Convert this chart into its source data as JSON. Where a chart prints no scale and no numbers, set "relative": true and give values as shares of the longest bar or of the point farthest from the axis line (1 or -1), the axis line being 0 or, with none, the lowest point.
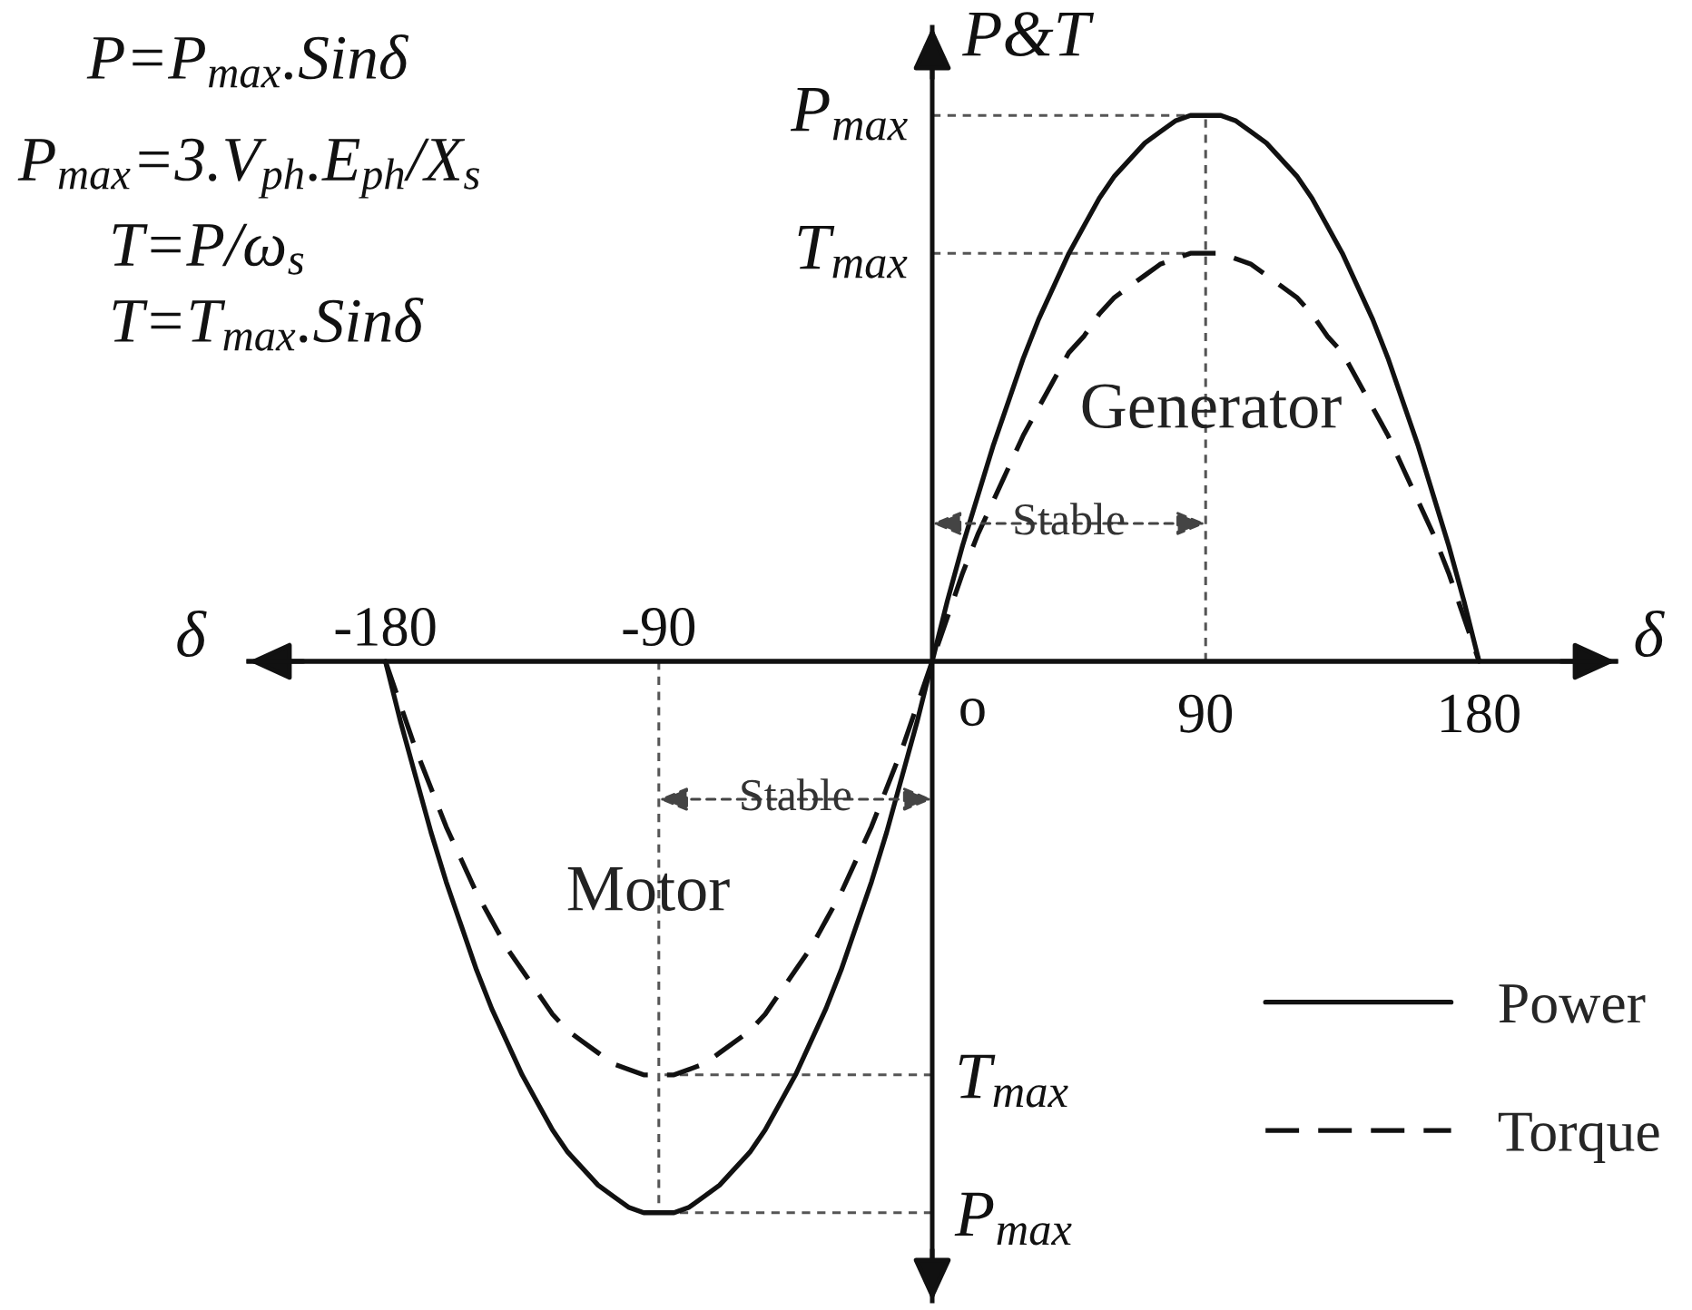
{
  "chart_data": {
    "type": "line",
    "relative": true,
    "xlabel": "δ",
    "ylabel": "P&T",
    "xlim": [
      -225,
      225
    ],
    "xticks": [
      90,
      180
    ],
    "x2lim": [
      -225,
      225
    ],
    "x2ticks": [
      -180,
      -90
    ],
    "x": [
      -180,
      -175,
      -170,
      -165,
      -160,
      -155,
      -150,
      -145,
      -140,
      -135,
      -130,
      -125,
      -120,
      -115,
      -110,
      -105,
      -100,
      -95,
      -90,
      -85,
      -80,
      -75,
      -70,
      -65,
      -60,
      -55,
      -50,
      -45,
      -40,
      -35,
      -30,
      -25,
      -20,
      -15,
      -10,
      -5,
      0,
      5,
      10,
      15,
      20,
      25,
      30,
      35,
      40,
      45,
      50,
      55,
      60,
      65,
      70,
      75,
      80,
      85,
      90,
      95,
      100,
      105,
      110,
      115,
      120,
      125,
      130,
      135,
      140,
      145,
      150,
      155,
      160,
      165,
      170,
      175,
      180
    ],
    "series": [
      {
        "name": "Power",
        "color": "#111111",
        "line_style": "solid",
        "values": [
          0,
          -0.11,
          -0.21,
          -0.31,
          -0.4,
          -0.48,
          -0.56,
          -0.63,
          -0.69,
          -0.75,
          -0.8,
          -0.85,
          -0.89,
          -0.92,
          -0.95,
          -0.97,
          -0.99,
          -1.0,
          -1.0,
          -1.0,
          -0.99,
          -0.97,
          -0.95,
          -0.92,
          -0.89,
          -0.85,
          -0.8,
          -0.75,
          -0.69,
          -0.63,
          -0.56,
          -0.48,
          -0.4,
          -0.31,
          -0.21,
          -0.11,
          0,
          0.11,
          0.21,
          0.3,
          0.39,
          0.47,
          0.55,
          0.62,
          0.68,
          0.74,
          0.79,
          0.84,
          0.88,
          0.91,
          0.94,
          0.96,
          0.98,
          0.99,
          0.99,
          0.99,
          0.98,
          0.96,
          0.94,
          0.91,
          0.88,
          0.84,
          0.79,
          0.74,
          0.68,
          0.62,
          0.55,
          0.47,
          0.39,
          0.3,
          0.21,
          0.11,
          0
        ]
      },
      {
        "name": "Torque",
        "color": "#111111",
        "line_style": "dashed",
        "values": [
          0,
          -0.08,
          -0.16,
          -0.23,
          -0.3,
          -0.36,
          -0.42,
          -0.47,
          -0.52,
          -0.56,
          -0.6,
          -0.64,
          -0.67,
          -0.69,
          -0.71,
          -0.73,
          -0.74,
          -0.75,
          -0.75,
          -0.75,
          -0.74,
          -0.73,
          -0.71,
          -0.69,
          -0.67,
          -0.64,
          -0.6,
          -0.56,
          -0.52,
          -0.47,
          -0.42,
          -0.36,
          -0.3,
          -0.23,
          -0.16,
          -0.08,
          0,
          0.08,
          0.16,
          0.23,
          0.29,
          0.35,
          0.41,
          0.46,
          0.51,
          0.56,
          0.59,
          0.63,
          0.66,
          0.68,
          0.7,
          0.72,
          0.73,
          0.74,
          0.74,
          0.74,
          0.73,
          0.72,
          0.7,
          0.68,
          0.66,
          0.63,
          0.59,
          0.56,
          0.51,
          0.46,
          0.41,
          0.35,
          0.29,
          0.23,
          0.16,
          0.08,
          0
        ]
      }
    ],
    "ref_lines": [
      {
        "axis": "y",
        "value": 0.99,
        "label": "P$_{max}$",
        "color": "#555555",
        "line_style": "dashed"
      },
      {
        "axis": "y",
        "value": 0.74,
        "label": "T$_{max}$",
        "color": "#555555",
        "line_style": "dashed"
      },
      {
        "axis": "y",
        "value": -0.75,
        "label": "T$_{max}$",
        "color": "#555555",
        "line_style": "dashed"
      },
      {
        "axis": "y",
        "value": -1.0,
        "label": "P$_{max}$",
        "color": "#555555",
        "line_style": "dashed"
      },
      {
        "axis": "x",
        "value": 90,
        "color": "#555555",
        "line_style": "dashed"
      },
      {
        "axis": "x",
        "value": -90,
        "color": "#555555",
        "line_style": "dashed"
      }
    ],
    "annotations": [
      "P=P$_{max}$.Sinδ",
      "P$_{max}$=3.V$_{ph}$.E$_{ph}$/X$_{s}$",
      "T=P/ω$_{s}$",
      "T=T$_{max}$.Sinδ",
      "Generator",
      "Stable",
      "Stable",
      "Motor",
      {
        "text": "o",
        "x": 0,
        "y": 0
      }
    ],
    "legend": "bottom right"
  }
}
